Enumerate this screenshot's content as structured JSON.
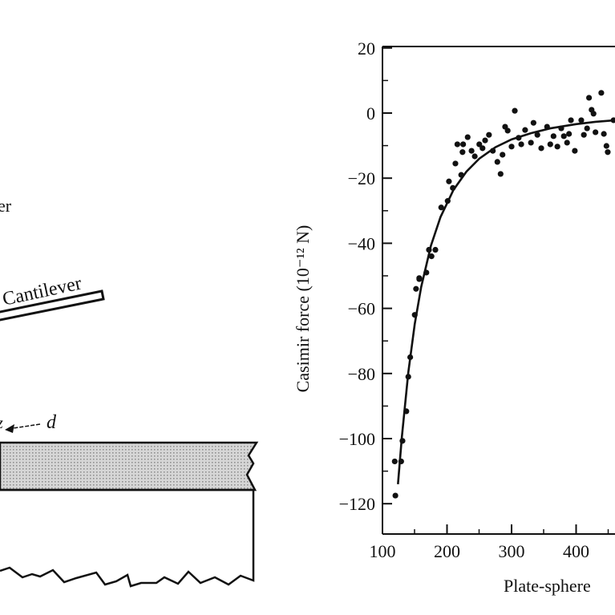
{
  "diagram": {
    "labels": {
      "partial_label": "er",
      "cantilever": "Cantilever",
      "z": "z",
      "d": "d"
    },
    "colors": {
      "plate_fill": "#c8c8c8",
      "ink": "#111111"
    }
  },
  "chart_data": {
    "type": "scatter",
    "title": "",
    "xlabel": "Plate-sphere",
    "ylabel": "Casimir force (10⁻¹² N)",
    "xlim": [
      100,
      462
    ],
    "ylim": [
      -130,
      20
    ],
    "xticks": [
      100,
      200,
      300,
      400
    ],
    "yticks": [
      20,
      0,
      -20,
      -40,
      -60,
      -80,
      -100,
      -120
    ],
    "grid": false,
    "series": [
      {
        "kind": "points",
        "points": [
          [
            120,
            -117.5
          ],
          [
            119,
            -107
          ],
          [
            129,
            -107
          ],
          [
            131,
            -100.7
          ],
          [
            137,
            -91.6
          ],
          [
            140,
            -81
          ],
          [
            143,
            -75
          ],
          [
            150,
            -62
          ],
          [
            152,
            -54
          ],
          [
            157,
            -51
          ],
          [
            157,
            -50.7
          ],
          [
            168,
            -49
          ],
          [
            172,
            -42
          ],
          [
            182,
            -42
          ],
          [
            176,
            -44
          ],
          [
            191,
            -29
          ],
          [
            201,
            -27
          ],
          [
            203,
            -21
          ],
          [
            209,
            -23
          ],
          [
            213,
            -15.5
          ],
          [
            222,
            -19
          ],
          [
            216,
            -9.6
          ],
          [
            225,
            -9.6
          ],
          [
            232,
            -7.4
          ],
          [
            224,
            -12
          ],
          [
            238,
            -11.6
          ],
          [
            243,
            -13.3
          ],
          [
            250,
            -9.6
          ],
          [
            255,
            -10.8
          ],
          [
            259,
            -8.4
          ],
          [
            265,
            -6.7
          ],
          [
            271,
            -11.6
          ],
          [
            278,
            -15
          ],
          [
            283,
            -18.7
          ],
          [
            286,
            -12.8
          ],
          [
            290,
            -4.2
          ],
          [
            294,
            -5.4
          ],
          [
            300,
            -10.3
          ],
          [
            305,
            0.7
          ],
          [
            311,
            -7.6
          ],
          [
            315,
            -9.6
          ],
          [
            321,
            -5.2
          ],
          [
            330,
            -9.1
          ],
          [
            334,
            -3
          ],
          [
            340,
            -6.7
          ],
          [
            346,
            -10.8
          ],
          [
            355,
            -4.2
          ],
          [
            360,
            -9.6
          ],
          [
            365,
            -7.1
          ],
          [
            371,
            -10.3
          ],
          [
            377,
            -4.7
          ],
          [
            381,
            -7.1
          ],
          [
            386,
            -9.1
          ],
          [
            392,
            -2.2
          ],
          [
            389,
            -6.4
          ],
          [
            398,
            -11.6
          ],
          [
            408,
            -2.2
          ],
          [
            412,
            -6.7
          ],
          [
            417,
            -4.7
          ],
          [
            420,
            4.7
          ],
          [
            424,
            1
          ],
          [
            427,
            -0.2
          ],
          [
            430,
            -5.9
          ],
          [
            439,
            6.2
          ],
          [
            443,
            -6.4
          ],
          [
            447,
            -10.1
          ],
          [
            449,
            -12
          ],
          [
            458,
            -2.2
          ]
        ]
      },
      {
        "kind": "fit-curve",
        "points": [
          [
            124,
            -114
          ],
          [
            130,
            -99.6
          ],
          [
            140,
            -79.7
          ],
          [
            150,
            -64.8
          ],
          [
            160,
            -53.4
          ],
          [
            175,
            -40.8
          ],
          [
            190,
            -31.9
          ],
          [
            210,
            -23.6
          ],
          [
            230,
            -18
          ],
          [
            250,
            -14
          ],
          [
            275,
            -10.5
          ],
          [
            300,
            -8.1
          ],
          [
            330,
            -6.2
          ],
          [
            360,
            -4.7
          ],
          [
            400,
            -3.4
          ],
          [
            430,
            -2.7
          ],
          [
            462,
            -2.2
          ]
        ]
      }
    ]
  }
}
